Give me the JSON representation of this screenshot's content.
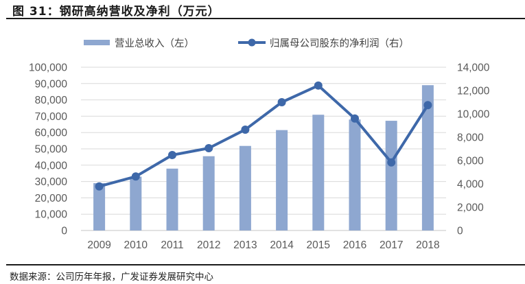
{
  "figure": {
    "title": "图 31：钢研高纳营收及净利（万元）",
    "source": "数据来源：公司历年年报，广发证券发展研究中心"
  },
  "colors": {
    "bar": "#8EA7D0",
    "line": "#3E68A9",
    "grid": "#D9D9D9",
    "axis_text": "#595959"
  },
  "legend": {
    "bar_label": "营业总收入（左）",
    "line_label": "归属母公司股东的净利润（右）"
  },
  "chart_data": {
    "type": "bar+line",
    "title": "钢研高纳营收及净利（万元）",
    "categories": [
      "2009",
      "2010",
      "2011",
      "2012",
      "2013",
      "2014",
      "2015",
      "2016",
      "2017",
      "2018"
    ],
    "series": [
      {
        "name": "营业总收入（左）",
        "type": "bar",
        "axis": "left",
        "values": [
          29000,
          33000,
          37900,
          45500,
          51800,
          61500,
          70900,
          68000,
          67200,
          89000
        ]
      },
      {
        "name": "归属母公司股东的净利润（右）",
        "type": "line",
        "axis": "right",
        "marker": "circle",
        "values": [
          3780,
          4630,
          6470,
          7060,
          8650,
          11000,
          12430,
          9600,
          5840,
          10750
        ]
      }
    ],
    "y_left": {
      "range": [
        0,
        100000
      ],
      "ticks": [
        "0",
        "10,000",
        "20,000",
        "30,000",
        "40,000",
        "50,000",
        "60,000",
        "70,000",
        "80,000",
        "90,000",
        "100,000"
      ]
    },
    "y_right": {
      "range": [
        0,
        14000
      ],
      "ticks": [
        "0",
        "2,000",
        "4,000",
        "6,000",
        "8,000",
        "10,000",
        "12,000",
        "14,000"
      ]
    },
    "xlabel": "",
    "ylabel": "",
    "grid": true,
    "legend_position": "top"
  }
}
